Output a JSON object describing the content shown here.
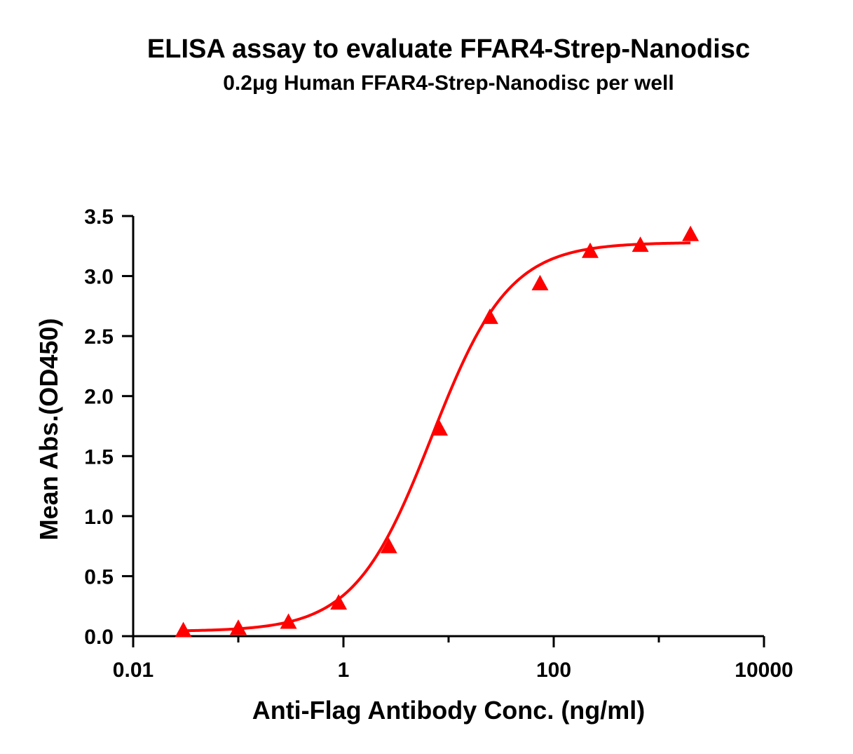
{
  "chart_data": {
    "type": "scatter",
    "title": "ELISA assay to evaluate FFAR4-Strep-Nanodisc",
    "subtitle": "0.2μg Human FFAR4-Strep-Nanodisc per well",
    "xlabel": "Anti-Flag Antibody Conc. (ng/ml)",
    "ylabel": "Mean Abs.(OD450)",
    "x_scale": "log",
    "xlim": [
      0.01,
      10000
    ],
    "ylim": [
      0,
      3.5
    ],
    "x_ticks": [
      0.01,
      1,
      100,
      10000
    ],
    "x_tick_labels": [
      "0.01",
      "1",
      "100",
      "10000"
    ],
    "y_ticks": [
      0,
      0.5,
      1,
      1.5,
      2,
      2.5,
      3,
      3.5
    ],
    "y_tick_labels": [
      "0.0",
      "0.5",
      "1.0",
      "1.5",
      "2.0",
      "2.5",
      "3.0",
      "3.5"
    ],
    "grid": false,
    "legend": "none",
    "color": "#ff0000",
    "marker": "triangle",
    "series": [
      {
        "x": [
          0.03,
          0.1,
          0.3,
          0.9,
          2.7,
          8.2,
          24.7,
          74.1,
          222.2,
          666.7,
          2000
        ],
        "y": [
          0.04,
          0.06,
          0.11,
          0.27,
          0.74,
          1.72,
          2.65,
          2.93,
          3.2,
          3.25,
          3.34
        ]
      }
    ],
    "fit_curve": {
      "model": "4PL",
      "bottom": 0.04,
      "top": 3.28,
      "ec50": 6.9,
      "hill": 1.18
    }
  }
}
